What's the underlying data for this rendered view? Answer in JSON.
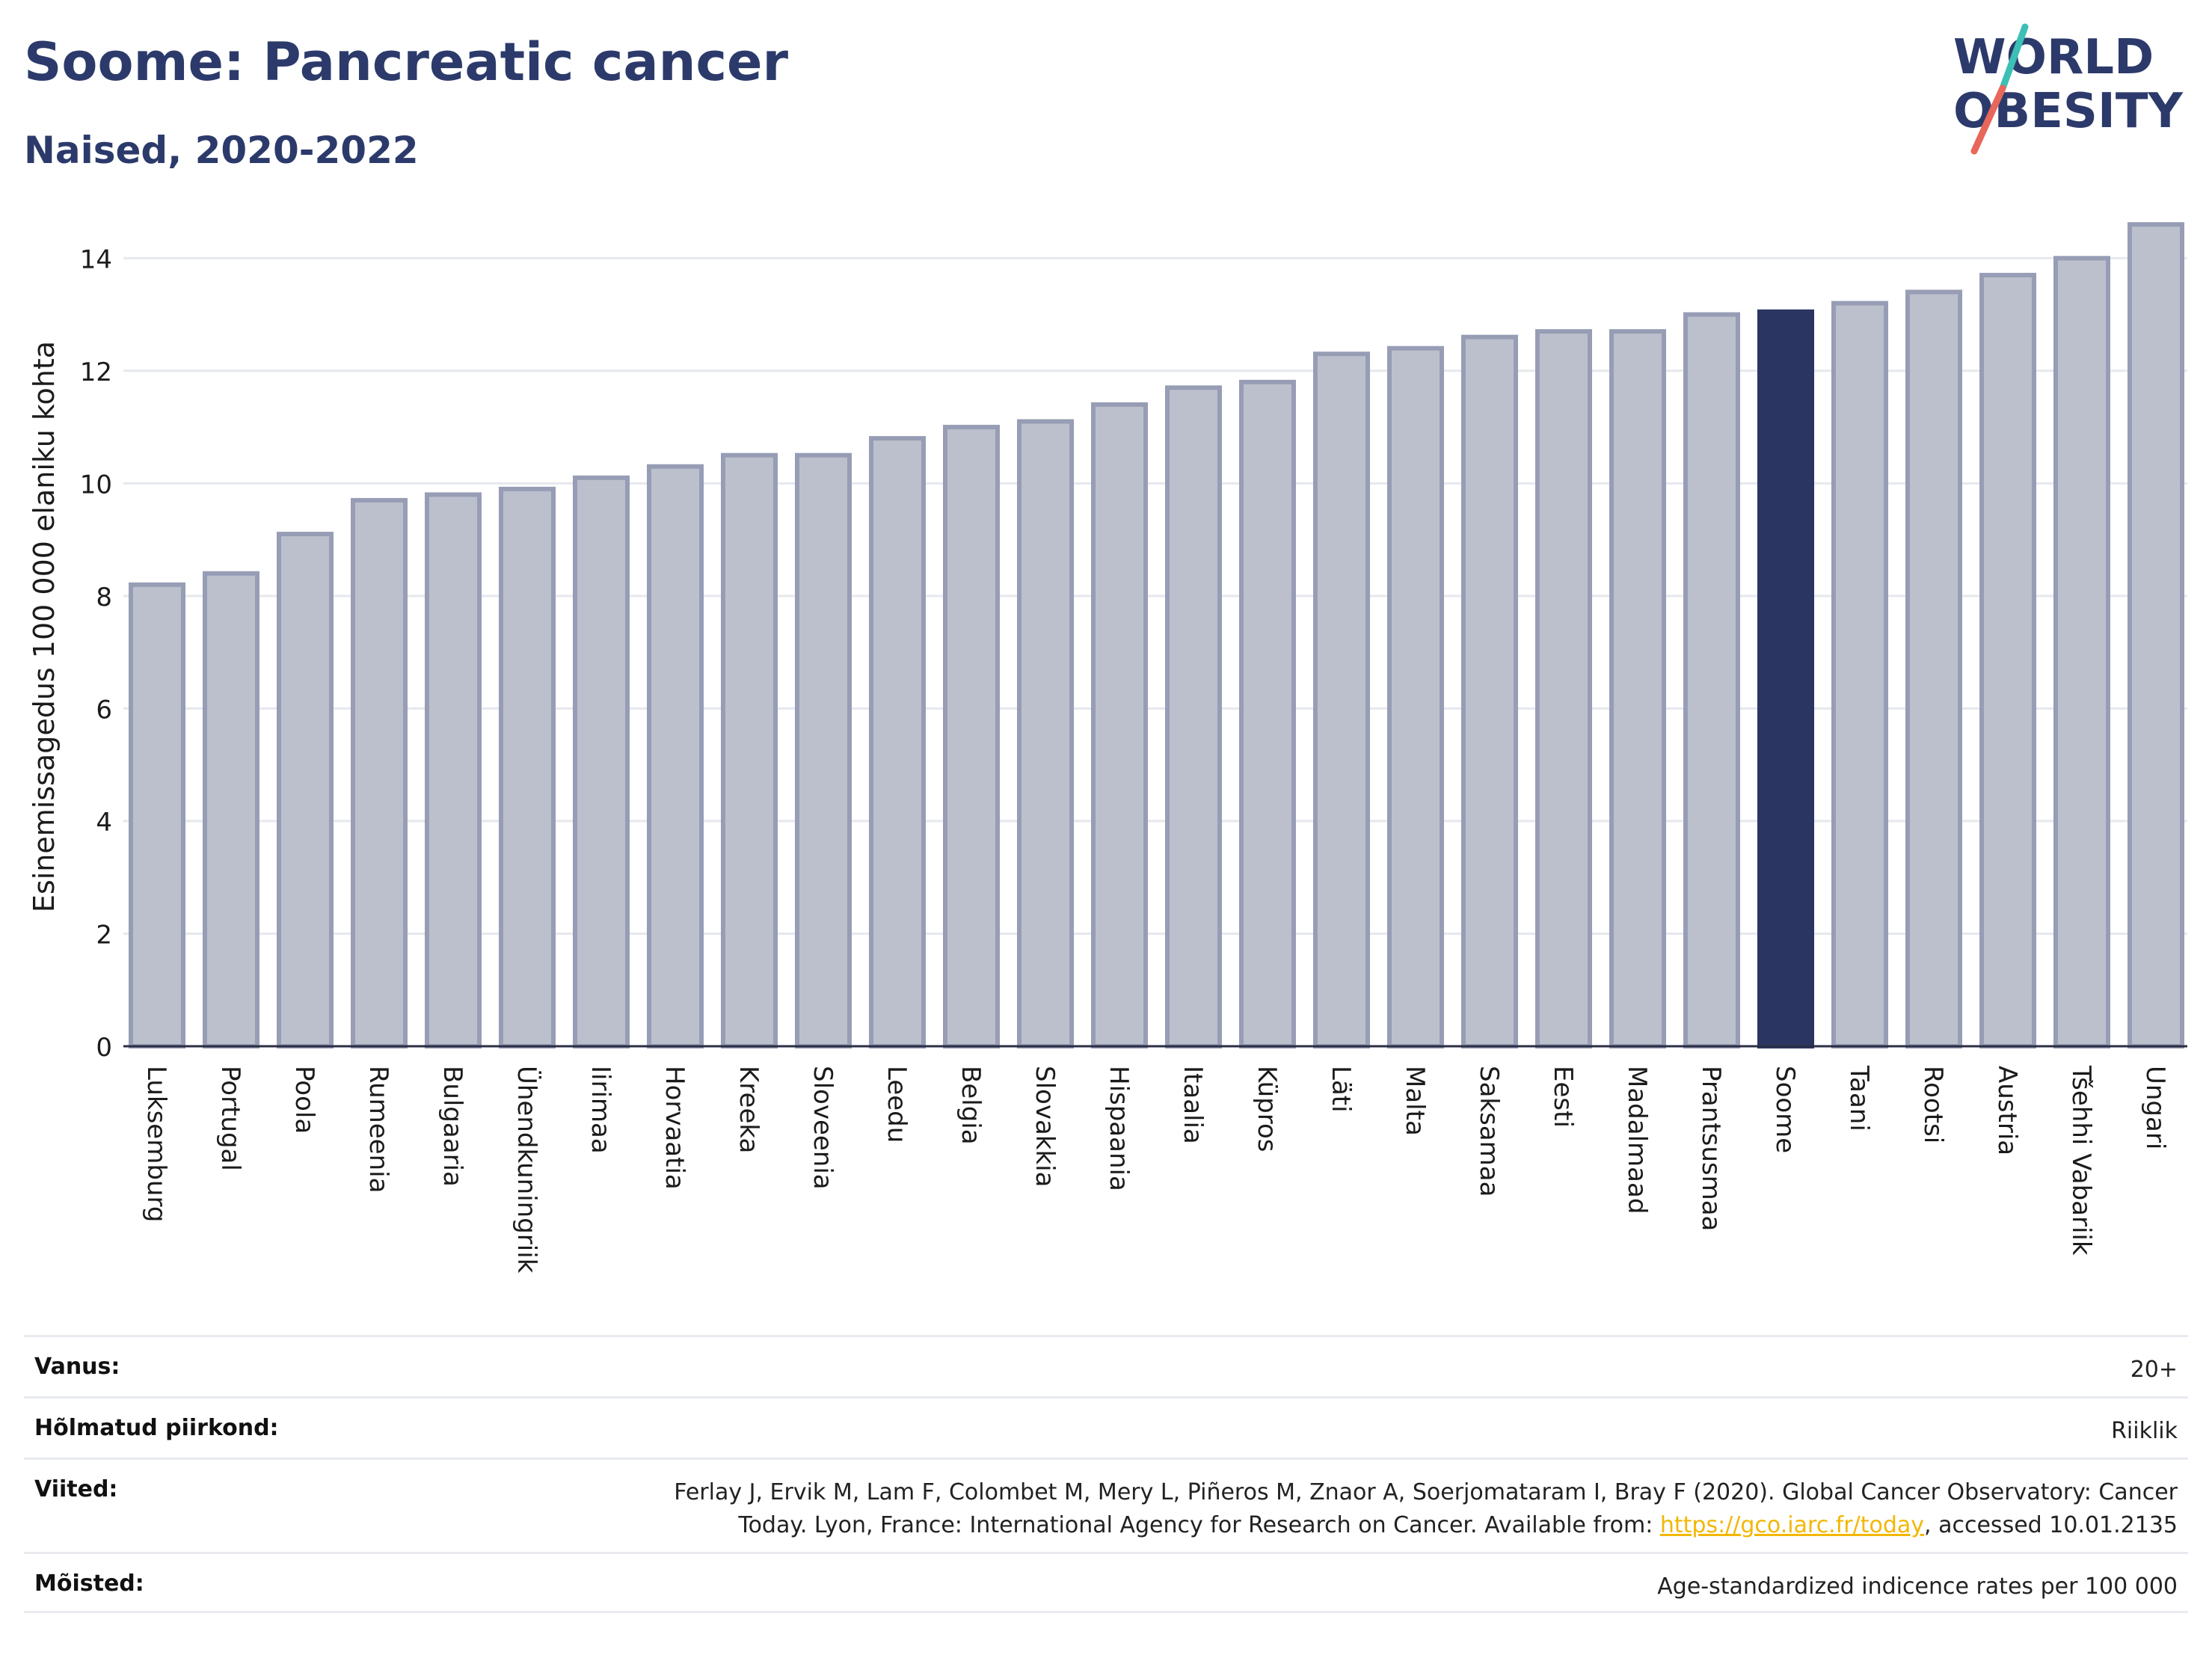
{
  "header": {
    "title": "Soome: Pancreatic cancer",
    "subtitle": "Naised, 2020-2022"
  },
  "logo": {
    "line1": "WORLD",
    "line2": "OBESITY",
    "slash_colors": [
      "#3cc0b5",
      "#e8675a"
    ],
    "text_color": "#2c3a6b"
  },
  "colors": {
    "bar_default_fill": "#bcc0cd",
    "bar_default_stroke": "#979db4",
    "bar_highlight": "#2b3561",
    "axis_text": "#1b1b1b",
    "grid": "#e6e8ee"
  },
  "chart_data": {
    "type": "bar",
    "ylabel": "Esinemissagedus 100 000 elaniku kohta",
    "ylim": [
      0,
      15
    ],
    "yticks": [
      0,
      2,
      4,
      6,
      8,
      10,
      12,
      14
    ],
    "grid": true,
    "highlight": "Soome",
    "categories": [
      "Luksemburg",
      "Portugal",
      "Poola",
      "Rumeenia",
      "Bulgaaria",
      "Ühendkuningriik",
      "Iirimaa",
      "Horvaatia",
      "Kreeka",
      "Sloveenia",
      "Leedu",
      "Belgia",
      "Slovakkia",
      "Hispaania",
      "Itaalia",
      "Küpros",
      "Läti",
      "Malta",
      "Saksamaa",
      "Eesti",
      "Madalmaad",
      "Prantsusmaa",
      "Soome",
      "Taani",
      "Rootsi",
      "Austria",
      "Tšehhi Vabariik",
      "Ungari"
    ],
    "values": [
      8.2,
      8.4,
      9.1,
      9.7,
      9.8,
      9.9,
      10.1,
      10.3,
      10.5,
      10.5,
      10.8,
      11.0,
      11.1,
      11.4,
      11.7,
      11.8,
      12.3,
      12.4,
      12.6,
      12.7,
      12.7,
      13.0,
      13.05,
      13.2,
      13.4,
      13.7,
      14.0,
      14.6
    ]
  },
  "info": {
    "age_label": "Vanus:",
    "age_value": "20+",
    "region_label": "Hõlmatud piirkond:",
    "region_value": "Riiklik",
    "refs_label": "Viited:",
    "refs_line1": "Ferlay J, Ervik M, Lam F, Colombet M, Mery L, Piñeros M, Znaor A, Soerjomataram I, Bray F (2020). Global Cancer Observatory: Cancer",
    "refs_line2_pre": "Today. Lyon, France: International Agency for Research on Cancer. Available from: ",
    "refs_link": "https://gco.iarc.fr/today",
    "refs_line2_post": ", accessed 10.01.2135",
    "defs_label": "Mõisted:",
    "defs_value": "Age-standardized indicence rates per 100 000"
  }
}
